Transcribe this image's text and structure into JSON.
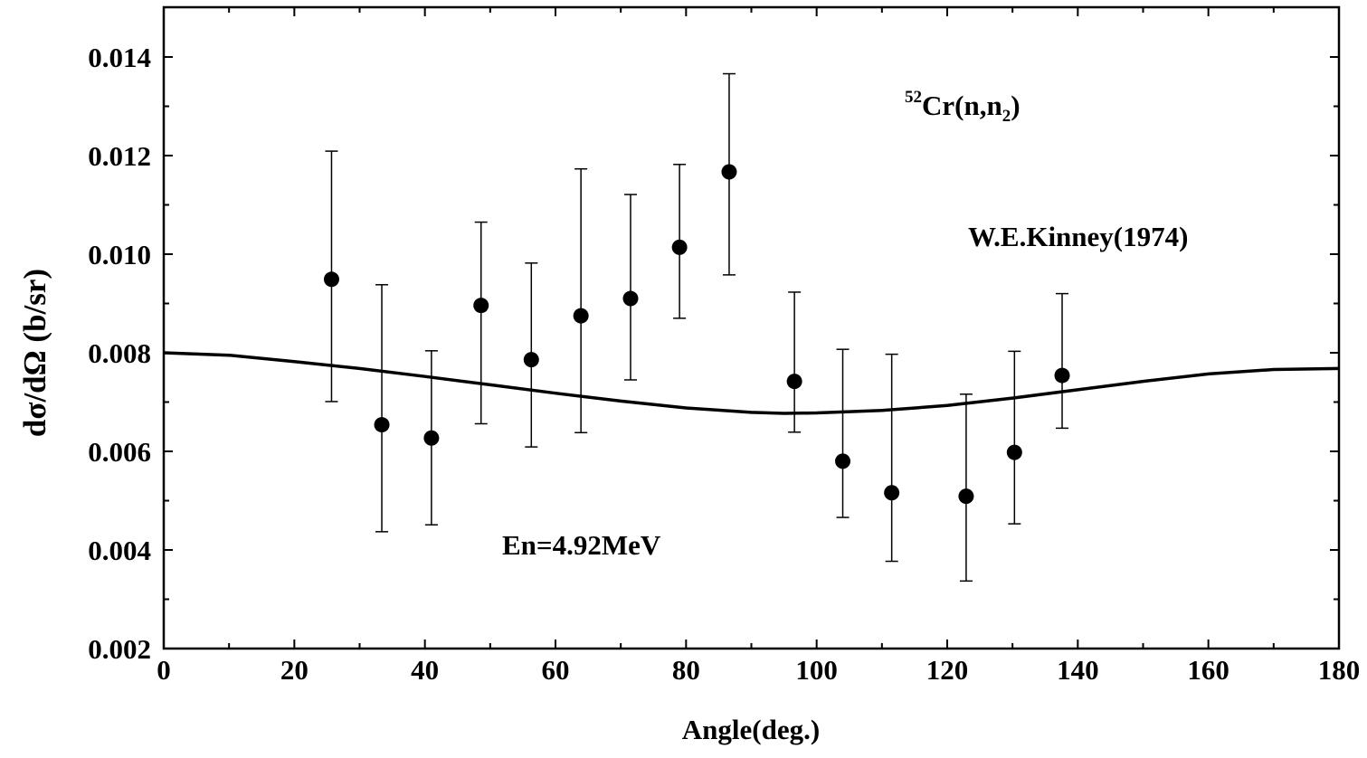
{
  "chart_data": {
    "type": "scatter",
    "title": "",
    "xlabel": "Angle(deg.)",
    "ylabel": "dσ/dΩ (b/sr)",
    "xlim": [
      0,
      180
    ],
    "ylim": [
      0.002,
      0.015
    ],
    "xticks": [
      "0",
      "20",
      "40",
      "60",
      "80",
      "100",
      "120",
      "140",
      "160",
      "180"
    ],
    "yticks": [
      "0.002",
      "0.004",
      "0.006",
      "0.008",
      "0.010",
      "0.012",
      "0.014"
    ],
    "grid": false,
    "annotations": {
      "reaction_sup": "52",
      "reaction_main": "Cr(n,n",
      "reaction_sub": "2",
      "reaction_end": ")",
      "author": "W.E.Kinney(1974)",
      "energy": "En=4.92MeV"
    },
    "series": [
      {
        "kind": "points-with-error-bars",
        "color": "#000000",
        "points": [
          {
            "x": 25.7,
            "y": 0.00949,
            "ylow": 0.00701,
            "yhigh": 0.01209
          },
          {
            "x": 33.4,
            "y": 0.00654,
            "ylow": 0.00437,
            "yhigh": 0.00938
          },
          {
            "x": 41.0,
            "y": 0.00627,
            "ylow": 0.00451,
            "yhigh": 0.00804
          },
          {
            "x": 48.6,
            "y": 0.00896,
            "ylow": 0.00656,
            "yhigh": 0.01065
          },
          {
            "x": 56.3,
            "y": 0.00786,
            "ylow": 0.00609,
            "yhigh": 0.00982
          },
          {
            "x": 63.9,
            "y": 0.00875,
            "ylow": 0.00638,
            "yhigh": 0.01173
          },
          {
            "x": 71.5,
            "y": 0.0091,
            "ylow": 0.00745,
            "yhigh": 0.01121
          },
          {
            "x": 79.0,
            "y": 0.01014,
            "ylow": 0.0087,
            "yhigh": 0.01182
          },
          {
            "x": 86.6,
            "y": 0.01167,
            "ylow": 0.00958,
            "yhigh": 0.01366
          },
          {
            "x": 96.6,
            "y": 0.00742,
            "ylow": 0.00639,
            "yhigh": 0.00923
          },
          {
            "x": 104.0,
            "y": 0.0058,
            "ylow": 0.00466,
            "yhigh": 0.00807
          },
          {
            "x": 111.5,
            "y": 0.00516,
            "ylow": 0.00377,
            "yhigh": 0.00797
          },
          {
            "x": 122.9,
            "y": 0.00509,
            "ylow": 0.00337,
            "yhigh": 0.00716
          },
          {
            "x": 130.3,
            "y": 0.00598,
            "ylow": 0.00453,
            "yhigh": 0.00803
          },
          {
            "x": 137.6,
            "y": 0.00754,
            "ylow": 0.00647,
            "yhigh": 0.0092
          }
        ]
      },
      {
        "kind": "line",
        "color": "#000000",
        "x": [
          0,
          10,
          20,
          30,
          40,
          50,
          60,
          70,
          80,
          90,
          95,
          100,
          110,
          120,
          130,
          140,
          150,
          160,
          170,
          180
        ],
        "y": [
          0.008,
          0.00795,
          0.00782,
          0.00768,
          0.00752,
          0.00735,
          0.00718,
          0.00702,
          0.00688,
          0.00679,
          0.00677,
          0.00678,
          0.00683,
          0.00693,
          0.00708,
          0.00725,
          0.00742,
          0.00757,
          0.00766,
          0.00768
        ]
      }
    ]
  }
}
